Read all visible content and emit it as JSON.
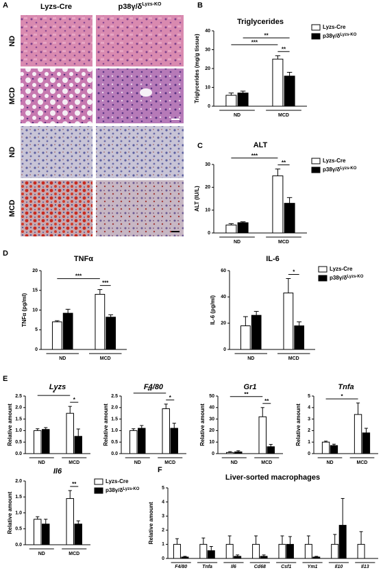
{
  "histology": {
    "panel": "A",
    "columns": [
      {
        "name": "Lyzs-Cre"
      },
      {
        "name": "p38γ/δ",
        "superscript": "Lyzs-KO"
      }
    ],
    "rows": [
      "ND",
      "MCD",
      "ND",
      "MCD"
    ]
  },
  "chart_data": [
    {
      "panel": "B",
      "type": "bar",
      "title": "Triglycerides",
      "ylabel": "Triglycerides (mg/g tissue)",
      "categories": [
        "ND",
        "MCD"
      ],
      "series": [
        {
          "name": "Lyzs-Cre",
          "color": "#ffffff",
          "values": [
            5.8,
            25
          ],
          "errors": [
            1.2,
            1.8
          ]
        },
        {
          "name": "p38γ/δ",
          "superscript": "Lyzs-KO",
          "color": "#000000",
          "values": [
            7,
            16
          ],
          "errors": [
            1,
            2
          ]
        }
      ],
      "ylim": [
        0,
        40
      ],
      "yticks": [
        0,
        10,
        20,
        30,
        40
      ],
      "legend": true,
      "comparisons": [
        {
          "label": "**",
          "bars": [
            [
              1,
              0
            ],
            [
              1,
              1
            ]
          ]
        },
        {
          "label": "***",
          "bars": [
            [
              0,
              0
            ],
            [
              1,
              0
            ]
          ]
        },
        {
          "label": "**",
          "bars": [
            [
              0,
              1
            ],
            [
              1,
              1
            ]
          ]
        }
      ]
    },
    {
      "panel": "C",
      "type": "bar",
      "title": "ALT",
      "ylabel": "ALT (IU/L)",
      "categories": [
        "ND",
        "MCD"
      ],
      "series": [
        {
          "name": "Lyzs-Cre",
          "color": "#ffffff",
          "values": [
            3.5,
            25
          ],
          "errors": [
            0.6,
            3
          ]
        },
        {
          "name": "p38γ/δ",
          "superscript": "Lyzs-KO",
          "color": "#000000",
          "values": [
            4.5,
            13
          ],
          "errors": [
            0.4,
            2.5
          ]
        }
      ],
      "ylim": [
        0,
        30
      ],
      "yticks": [
        0,
        10,
        20,
        30
      ],
      "legend": true,
      "comparisons": [
        {
          "label": "**",
          "bars": [
            [
              1,
              0
            ],
            [
              1,
              1
            ]
          ]
        },
        {
          "label": "***",
          "bars": [
            [
              0,
              0
            ],
            [
              1,
              0
            ]
          ]
        }
      ]
    },
    {
      "panel": "D",
      "type": "bar",
      "title": "TNFα",
      "ylabel": "TNFα (pg/ml)",
      "categories": [
        "ND",
        "MCD"
      ],
      "series": [
        {
          "name": "Lyzs-Cre",
          "color": "#ffffff",
          "values": [
            7,
            14
          ],
          "errors": [
            0.3,
            1.2
          ]
        },
        {
          "name": "p38γ/δ",
          "superscript": "Lyzs-KO",
          "color": "#000000",
          "values": [
            9.2,
            8.2
          ],
          "errors": [
            1,
            0.6
          ]
        }
      ],
      "ylim": [
        0,
        20
      ],
      "yticks": [
        0,
        5,
        10,
        15,
        20
      ],
      "legend": false,
      "comparisons": [
        {
          "label": "***",
          "bars": [
            [
              1,
              0
            ],
            [
              1,
              1
            ]
          ]
        },
        {
          "label": "***",
          "bars": [
            [
              0,
              0
            ],
            [
              1,
              0
            ]
          ]
        }
      ]
    },
    {
      "type": "bar",
      "title": "IL-6",
      "ylabel": "IL-6 (pg/ml)",
      "categories": [
        "ND",
        "MCD"
      ],
      "series": [
        {
          "name": "Lyzs-Cre",
          "color": "#ffffff",
          "values": [
            18,
            43
          ],
          "errors": [
            7,
            11
          ]
        },
        {
          "name": "p38γ/δ",
          "superscript": "Lyzs-KO",
          "color": "#000000",
          "values": [
            26,
            18
          ],
          "errors": [
            3,
            3
          ]
        }
      ],
      "ylim": [
        0,
        60
      ],
      "yticks": [
        0,
        20,
        40,
        60
      ],
      "legend": true,
      "comparisons": [
        {
          "label": "*",
          "bars": [
            [
              1,
              0
            ],
            [
              1,
              1
            ]
          ]
        }
      ]
    },
    {
      "panel": "E",
      "type": "bar",
      "title": "Lyzs",
      "title_italic": true,
      "ylabel": "Relative amount",
      "categories": [
        "ND",
        "MCD"
      ],
      "series": [
        {
          "name": "Lyzs-Cre",
          "color": "#ffffff",
          "values": [
            1,
            1.75
          ],
          "errors": [
            0.08,
            0.3
          ]
        },
        {
          "name": "p38γ/δ",
          "superscript": "Lyzs-KO",
          "color": "#000000",
          "values": [
            1.05,
            0.75
          ],
          "errors": [
            0.08,
            0.32
          ]
        }
      ],
      "ylim": [
        0,
        2.5
      ],
      "yticks": [
        {
          "value": 0,
          "label": "0.0"
        },
        0.5,
        {
          "value": 1,
          "label": "1.0"
        },
        1.5,
        {
          "value": 2,
          "label": "2.0"
        },
        2.5
      ],
      "legend": false,
      "comparisons": [
        {
          "label": "*",
          "bars": [
            [
              1,
              0
            ],
            [
              1,
              1
            ]
          ]
        },
        {
          "label": "*",
          "bars": [
            [
              0,
              0
            ],
            [
              1,
              0
            ]
          ]
        }
      ]
    },
    {
      "type": "bar",
      "title": "F4/80",
      "title_italic": true,
      "ylabel": "Relative amount",
      "categories": [
        "ND",
        "MCD"
      ],
      "series": [
        {
          "name": "Lyzs-Cre",
          "color": "#ffffff",
          "values": [
            1,
            1.95
          ],
          "errors": [
            0.08,
            0.2
          ]
        },
        {
          "name": "p38γ/δ",
          "superscript": "Lyzs-KO",
          "color": "#000000",
          "values": [
            1.1,
            1.1
          ],
          "errors": [
            0.12,
            0.22
          ]
        }
      ],
      "ylim": [
        0,
        2.5
      ],
      "yticks": [
        {
          "value": 0,
          "label": "0.0"
        },
        0.5,
        {
          "value": 1,
          "label": "1.0"
        },
        1.5,
        {
          "value": 2,
          "label": "2.0"
        },
        2.5
      ],
      "legend": false,
      "comparisons": [
        {
          "label": "*",
          "bars": [
            [
              1,
              0
            ],
            [
              1,
              1
            ]
          ]
        },
        {
          "label": "**",
          "bars": [
            [
              0,
              0
            ],
            [
              1,
              0
            ]
          ]
        }
      ]
    },
    {
      "type": "bar",
      "title": "Gr1",
      "title_italic": true,
      "ylabel": "Relative amount",
      "categories": [
        "ND",
        "MCD"
      ],
      "series": [
        {
          "name": "Lyzs-Cre",
          "color": "#ffffff",
          "values": [
            1,
            32
          ],
          "errors": [
            0.7,
            8
          ]
        },
        {
          "name": "p38γ/δ",
          "superscript": "Lyzs-KO",
          "color": "#000000",
          "values": [
            1.5,
            6
          ],
          "errors": [
            1,
            2
          ]
        }
      ],
      "ylim": [
        0,
        50
      ],
      "yticks": [
        0,
        10,
        20,
        30,
        40,
        50
      ],
      "legend": false,
      "comparisons": [
        {
          "label": "**",
          "bars": [
            [
              1,
              0
            ],
            [
              1,
              1
            ]
          ]
        },
        {
          "label": "**",
          "bars": [
            [
              0,
              0
            ],
            [
              1,
              0
            ]
          ]
        }
      ]
    },
    {
      "type": "bar",
      "title": "Tnfa",
      "title_italic": true,
      "ylabel": "Relative amount",
      "categories": [
        "ND",
        "MCD"
      ],
      "series": [
        {
          "name": "Lyzs-Cre",
          "color": "#ffffff",
          "values": [
            1,
            3.4
          ],
          "errors": [
            0.08,
            1
          ]
        },
        {
          "name": "p38γ/δ",
          "superscript": "Lyzs-KO",
          "color": "#000000",
          "values": [
            0.7,
            1.8
          ],
          "errors": [
            0.12,
            0.4
          ]
        }
      ],
      "ylim": [
        0,
        5
      ],
      "yticks": [
        0,
        1,
        2,
        3,
        4,
        5
      ],
      "legend": false,
      "comparisons": [
        {
          "label": "*",
          "bars": [
            [
              0,
              0
            ],
            [
              1,
              0
            ]
          ]
        }
      ]
    },
    {
      "type": "bar",
      "title": "Il6",
      "title_italic": true,
      "ylabel": "Relative amount",
      "categories": [
        "ND",
        "MCD"
      ],
      "series": [
        {
          "name": "Lyzs-Cre",
          "color": "#ffffff",
          "values": [
            0.8,
            1.45
          ],
          "errors": [
            0.08,
            0.25
          ]
        },
        {
          "name": "p38γ/δ",
          "superscript": "Lyzs-KO",
          "color": "#000000",
          "values": [
            0.65,
            0.65
          ],
          "errors": [
            0.15,
            0.1
          ]
        }
      ],
      "ylim": [
        0,
        2
      ],
      "yticks": [
        {
          "value": 0,
          "label": "0.0"
        },
        0.5,
        {
          "value": 1,
          "label": "1.0"
        },
        1.5,
        {
          "value": 2,
          "label": "2.0"
        }
      ],
      "legend": true,
      "comparisons": [
        {
          "label": "**",
          "bars": [
            [
              1,
              0
            ],
            [
              1,
              1
            ]
          ]
        }
      ]
    },
    {
      "panel": "F",
      "type": "bar",
      "title": "Liver-sorted macrophages",
      "ylabel": "Relative amount",
      "category_italic": true,
      "categories": [
        "F4/80",
        "Tnfa",
        "Il6",
        "Cd68",
        "Csf1",
        "Ym1",
        "Il10",
        "Il13"
      ],
      "series": [
        {
          "color": "#ffffff",
          "values": [
            1,
            1,
            1,
            1,
            1,
            1,
            1,
            1
          ],
          "errors": [
            0.4,
            0.45,
            0.6,
            0.6,
            0.6,
            0.6,
            0.7,
            0.9
          ]
        },
        {
          "color": "#000000",
          "values": [
            0.1,
            0.55,
            0.15,
            0.15,
            1,
            0.1,
            2.35,
            null
          ],
          "errors": [
            0.05,
            0.3,
            0.1,
            0.1,
            0.55,
            0.05,
            1.9,
            null
          ]
        }
      ],
      "ylim": [
        0,
        5
      ],
      "yticks": [
        0,
        1,
        2,
        3,
        4,
        5
      ],
      "legend": false,
      "comparisons": []
    }
  ]
}
